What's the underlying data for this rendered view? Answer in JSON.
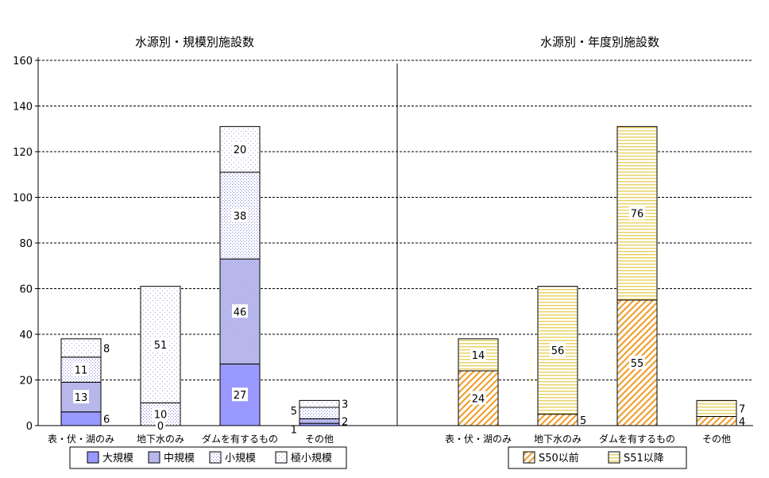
{
  "chart_data": [
    {
      "type": "bar",
      "stacked": true,
      "title": "水源別・規模別施設数",
      "categories": [
        "表・伏・湖のみ",
        "地下水のみ",
        "ダムを有するもの",
        "その他"
      ],
      "series": [
        {
          "name": "大規模",
          "values": [
            6,
            0,
            27,
            1
          ],
          "color": "#9999ff",
          "pattern": "solid"
        },
        {
          "name": "中規模",
          "values": [
            13,
            0,
            46,
            2
          ],
          "color": "#9999ff",
          "pattern": "checker"
        },
        {
          "name": "小規模",
          "values": [
            11,
            10,
            38,
            5
          ],
          "color": "#9999ff",
          "pattern": "dots-dense"
        },
        {
          "name": "極小規模",
          "values": [
            8,
            51,
            20,
            3
          ],
          "color": "#9999ff",
          "pattern": "dots-sparse"
        }
      ],
      "ylim": [
        0,
        160
      ],
      "yticks": [
        0,
        20,
        40,
        60,
        80,
        100,
        120,
        140,
        160
      ],
      "grid": "horizontal-dashed",
      "legend": "bottom"
    },
    {
      "type": "bar",
      "stacked": true,
      "title": "水源別・年度別施設数",
      "categories": [
        "表・伏・湖のみ",
        "地下水のみ",
        "ダムを有するもの",
        "その他"
      ],
      "series": [
        {
          "name": "S50以前",
          "values": [
            24,
            5,
            55,
            4
          ],
          "color": "#f0a030",
          "pattern": "diagonal-hatch"
        },
        {
          "name": "S51以降",
          "values": [
            14,
            56,
            76,
            7
          ],
          "color": "#e8d060",
          "pattern": "horizontal-lines"
        }
      ],
      "ylim": [
        0,
        160
      ],
      "grid": "horizontal-dashed",
      "legend": "bottom"
    }
  ]
}
